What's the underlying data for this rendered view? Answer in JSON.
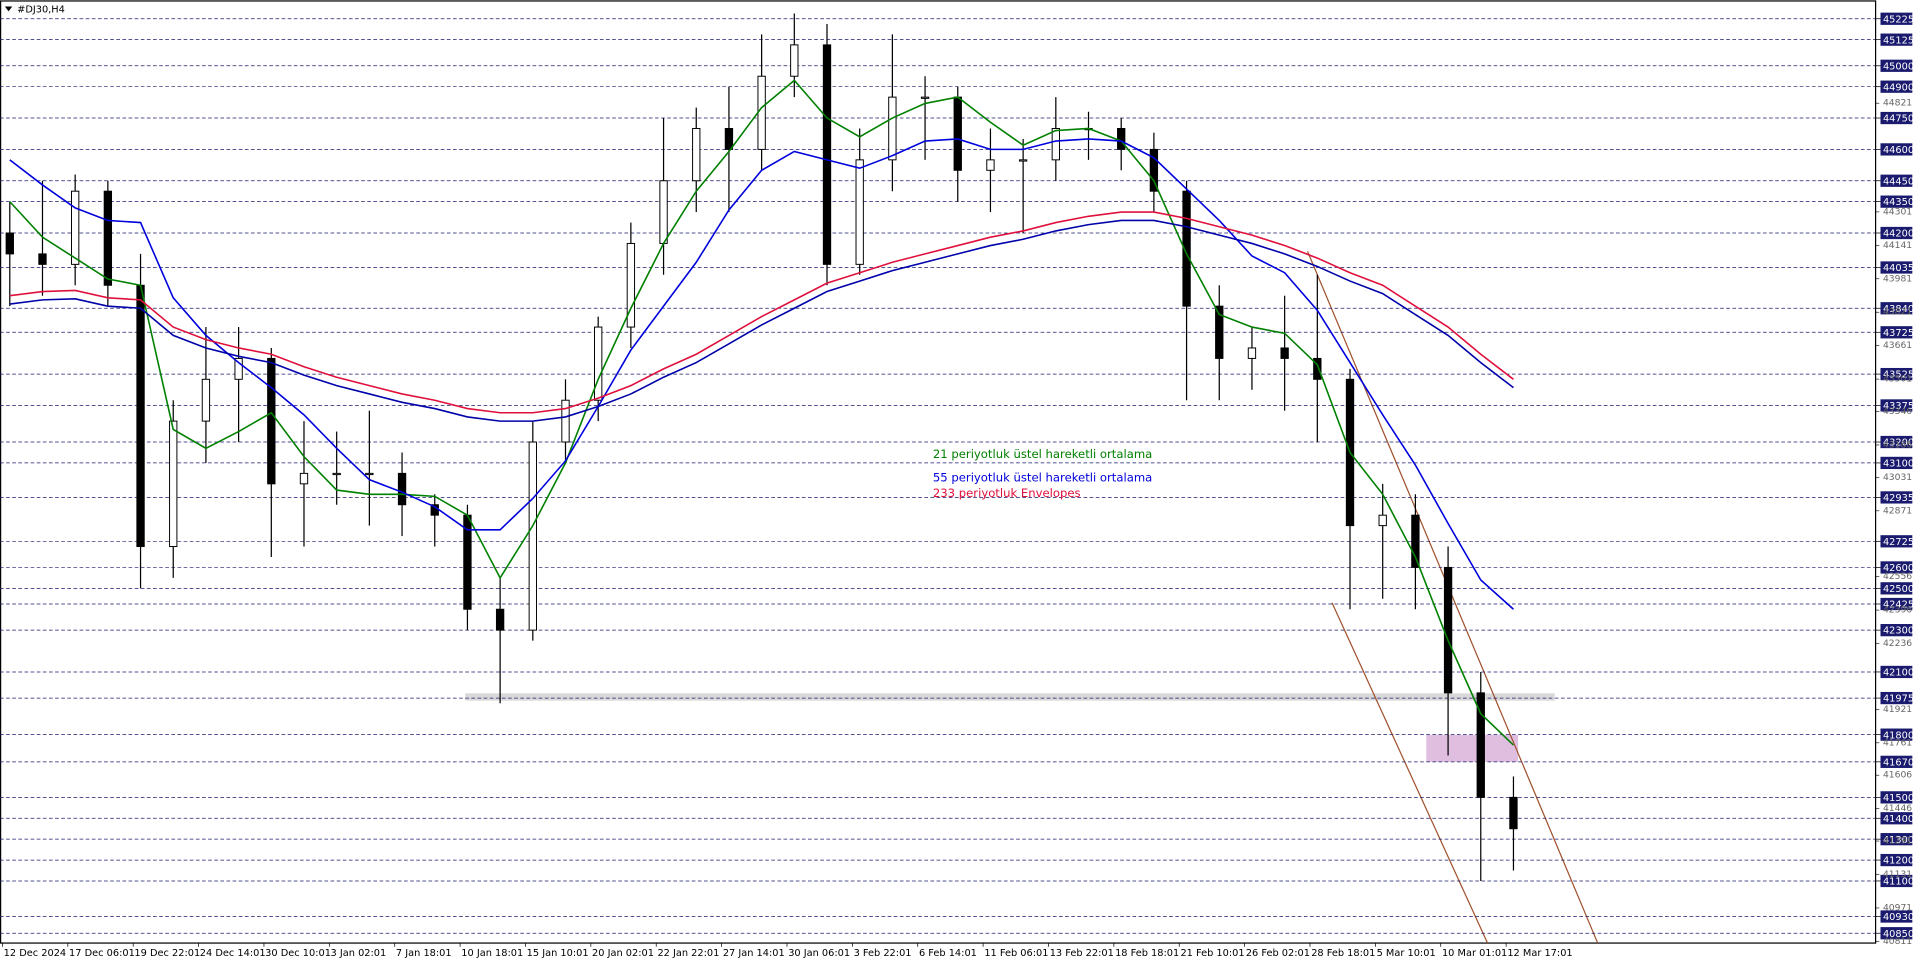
{
  "chart_data": {
    "type": "candlestick",
    "title": "#DJ30,H4",
    "categories": [
      "12 Dec 2024",
      null,
      "17 Dec 06:01",
      null,
      "19 Dec 22:01",
      null,
      "24 Dec 14:01",
      null,
      "30 Dec 10:01",
      null,
      "3 Jan 02:01",
      null,
      "7 Jan 18:01",
      null,
      "10 Jan 18:01",
      null,
      "15 Jan 10:01",
      null,
      "20 Jan 02:01",
      null,
      "22 Jan 22:01",
      null,
      "27 Jan 14:01",
      null,
      "30 Jan 06:01",
      null,
      "3 Feb 22:01",
      null,
      "6 Feb 14:01",
      null,
      "11 Feb 06:01",
      null,
      "13 Feb 22:01",
      null,
      "18 Feb 18:01",
      null,
      "21 Feb 10:01",
      null,
      "26 Feb 02:01",
      null,
      "28 Feb 18:01",
      null,
      "5 Mar 10:01",
      null,
      "10 Mar 01:01",
      null,
      "12 Mar 17:01"
    ],
    "open": [
      44200,
      44100,
      44050,
      44400,
      43950,
      42700,
      43300,
      43500,
      43600,
      43000,
      43050,
      43050,
      43050,
      42900,
      42850,
      42400,
      42300,
      43200,
      43400,
      43750,
      44150,
      44450,
      44700,
      44600,
      44950,
      45100,
      44050,
      44550,
      44850,
      44850,
      44500,
      44550,
      44550,
      44700,
      44700,
      44600,
      44400,
      43850,
      43600,
      43650,
      43600,
      43500,
      42800,
      42850,
      42600,
      42000,
      41500
    ],
    "high": [
      44350,
      44450,
      44480,
      44450,
      44100,
      43400,
      43750,
      43750,
      43650,
      43300,
      43250,
      43350,
      43150,
      42950,
      42900,
      42550,
      43300,
      43500,
      43800,
      44250,
      44750,
      44800,
      44900,
      45150,
      45250,
      45200,
      44700,
      45150,
      44950,
      44900,
      44700,
      44650,
      44850,
      44780,
      44750,
      44680,
      44450,
      43950,
      43750,
      43900,
      44000,
      43550,
      43000,
      42950,
      42700,
      42100,
      41600
    ],
    "low": [
      43850,
      43900,
      43950,
      43850,
      42500,
      42550,
      43100,
      43200,
      42650,
      42700,
      42900,
      42800,
      42750,
      42700,
      42300,
      41950,
      42250,
      43100,
      43300,
      43650,
      44000,
      44300,
      44300,
      44500,
      44850,
      43950,
      44000,
      44400,
      44550,
      44350,
      44300,
      44200,
      44450,
      44550,
      44500,
      44300,
      43400,
      43400,
      43450,
      43350,
      43200,
      42400,
      42450,
      42400,
      41700,
      41100,
      41150
    ],
    "close": [
      44100,
      44050,
      44400,
      43950,
      42700,
      43300,
      43500,
      43600,
      43000,
      43050,
      43050,
      43050,
      42900,
      42850,
      42400,
      42300,
      43200,
      43400,
      43750,
      44150,
      44450,
      44700,
      44600,
      44950,
      45100,
      44050,
      44550,
      44850,
      44850,
      44500,
      44550,
      44550,
      44700,
      44700,
      44600,
      44400,
      43850,
      43600,
      43650,
      43600,
      43500,
      42800,
      42850,
      42600,
      42000,
      41500,
      41350
    ],
    "series": [
      {
        "name": "21 periyotluk üstel hareketli ortalama",
        "color": "#008000",
        "values": [
          44350,
          44180,
          44080,
          43980,
          43950,
          43260,
          43170,
          43250,
          43340,
          43130,
          42970,
          42950,
          42950,
          42940,
          42850,
          42550,
          42800,
          43100,
          43500,
          43840,
          44150,
          44400,
          44590,
          44800,
          44930,
          44750,
          44660,
          44750,
          44820,
          44850,
          44730,
          44620,
          44690,
          44700,
          44640,
          44450,
          44100,
          43810,
          43750,
          43720,
          43570,
          43150,
          42950,
          42650,
          42250,
          41900,
          41750
        ]
      },
      {
        "name": "55 periyotluk üstel hareketli ortalama",
        "color": "#0000dd",
        "values": [
          44550,
          44430,
          44320,
          44260,
          44250,
          43890,
          43710,
          43580,
          43460,
          43330,
          43170,
          43020,
          42960,
          42890,
          42780,
          42780,
          42930,
          43110,
          43370,
          43640,
          43850,
          44060,
          44310,
          44500,
          44590,
          44550,
          44510,
          44570,
          44640,
          44650,
          44600,
          44600,
          44640,
          44650,
          44640,
          44560,
          44410,
          44260,
          44090,
          44010,
          43830,
          43580,
          43330,
          43090,
          42810,
          42540,
          42400
        ]
      },
      {
        "name": "233 periyotluk Envelopes",
        "color": "#e0103c",
        "values": [
          43900,
          43920,
          43925,
          43890,
          43880,
          43750,
          43690,
          43650,
          43620,
          43560,
          43510,
          43470,
          43430,
          43400,
          43360,
          43340,
          43340,
          43360,
          43410,
          43470,
          43550,
          43620,
          43710,
          43800,
          43880,
          43960,
          44010,
          44060,
          44100,
          44140,
          44180,
          44210,
          44250,
          44280,
          44300,
          44300,
          44270,
          44230,
          44190,
          44140,
          44080,
          44010,
          43950,
          43850,
          43750,
          43620,
          43500
        ]
      },
      {
        "color": "#0000aa",
        "values": [
          43860,
          43880,
          43885,
          43850,
          43840,
          43710,
          43650,
          43610,
          43580,
          43520,
          43470,
          43430,
          43390,
          43360,
          43320,
          43300,
          43300,
          43320,
          43370,
          43430,
          43510,
          43580,
          43670,
          43760,
          43840,
          43920,
          43970,
          44020,
          44060,
          44100,
          44140,
          44170,
          44210,
          44240,
          44260,
          44260,
          44230,
          44190,
          44150,
          44100,
          44040,
          43970,
          43910,
          43810,
          43710,
          43580,
          43460
        ]
      }
    ],
    "ylim": [
      40803,
      45313
    ],
    "yticks": [
      45225,
      45125,
      45000,
      44900,
      44750,
      44600,
      44450,
      44350,
      44200,
      44035,
      43840,
      43725,
      43525,
      43375,
      43200,
      43100,
      42935,
      42725,
      42600,
      42500,
      42425,
      42300,
      42100,
      41975,
      41800,
      41670,
      41500,
      41400,
      41300,
      41200,
      41100,
      40930,
      40850
    ],
    "yticks_minor": [
      44821,
      44301,
      44141,
      43981,
      43821,
      43661,
      43501,
      43346,
      43186,
      43031,
      42871,
      42556,
      42396,
      42236,
      41921,
      41761,
      41606,
      41446,
      41291,
      41131,
      40971,
      40811
    ],
    "grid": true,
    "bull_color": "#ffffff",
    "bear_color": "#000000"
  }
}
